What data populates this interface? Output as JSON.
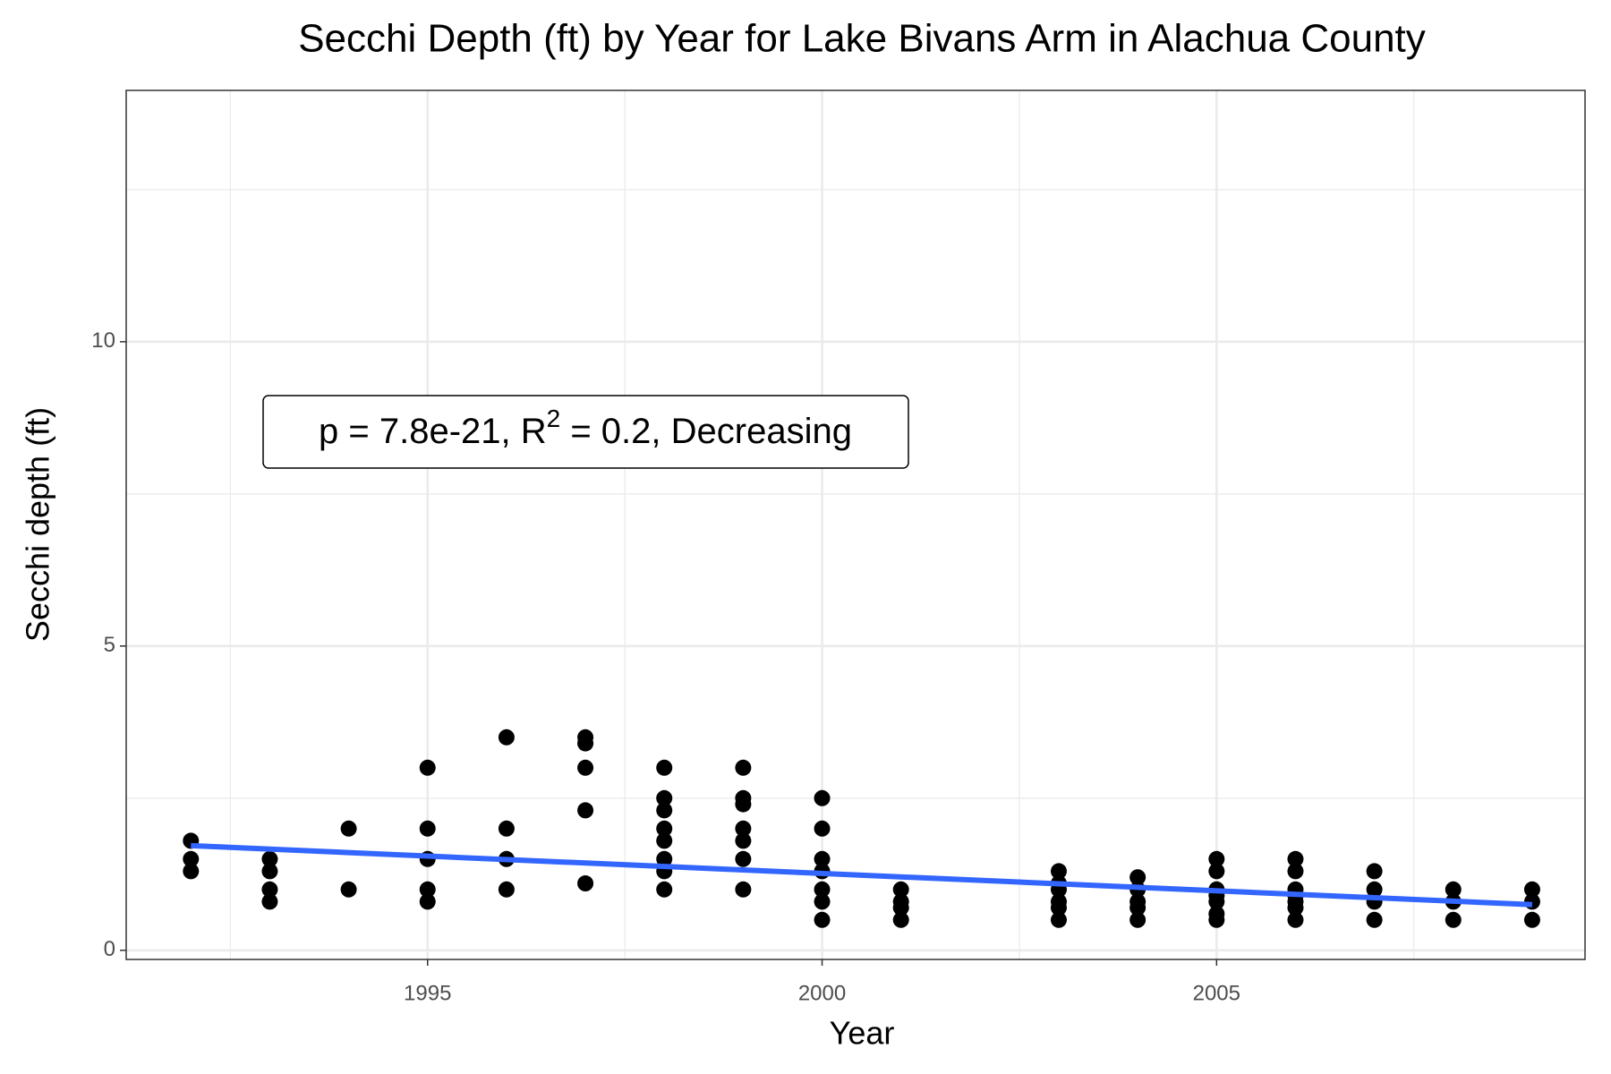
{
  "chart_data": {
    "type": "scatter",
    "title": "Secchi Depth (ft) by Year for Lake Bivans Arm in Alachua County",
    "x_label": "Year",
    "y_label": "Secchi depth (ft)",
    "annotation": [
      "p = 7.8e-21, R",
      "2",
      " = 0.2, Decreasing"
    ],
    "xlim": [
      1991.18,
      2009.67
    ],
    "ylim": [
      -0.15,
      14.13
    ],
    "xticks": [
      1995,
      2000,
      2005
    ],
    "yticks": [
      0,
      5,
      10
    ],
    "xminor": [
      1992.5,
      1997.5,
      2002.5,
      2007.5
    ],
    "yminor": [
      2.5,
      7.5,
      12.5
    ],
    "grid": true,
    "series": [
      {
        "color": "#000000",
        "x": [
          1992,
          1992,
          1992,
          1993,
          1993,
          1993,
          1993,
          1994,
          1994,
          1995,
          1995,
          1995,
          1995,
          1995,
          1996,
          1996,
          1996,
          1996,
          1997,
          1997,
          1997,
          1997,
          1997,
          1998,
          1998,
          1998,
          1998,
          1998,
          1998,
          1998,
          1998,
          1999,
          1999,
          1999,
          1999,
          1999,
          1999,
          1999,
          2000,
          2000,
          2000,
          2000,
          2000,
          2000,
          2000,
          2001,
          2001,
          2001,
          2001,
          2003,
          2003,
          2003,
          2003,
          2003,
          2003,
          2004,
          2004,
          2004,
          2004,
          2004,
          2005,
          2005,
          2005,
          2005,
          2005,
          2005,
          2005,
          2006,
          2006,
          2006,
          2006,
          2006,
          2006,
          2006,
          2007,
          2007,
          2007,
          2007,
          2008,
          2008,
          2008,
          2009,
          2009,
          2009
        ],
        "values": [
          1.8,
          1.5,
          1.3,
          1.5,
          1.3,
          1.0,
          0.8,
          2.0,
          1.0,
          3.0,
          2.0,
          1.5,
          1.0,
          0.8,
          3.5,
          2.0,
          1.5,
          1.0,
          3.5,
          3.4,
          3.0,
          2.3,
          1.1,
          3.0,
          2.5,
          2.3,
          2.0,
          1.8,
          1.5,
          1.3,
          1.0,
          3.0,
          2.5,
          2.4,
          2.0,
          1.8,
          1.5,
          1.0,
          2.5,
          2.0,
          1.5,
          1.3,
          1.0,
          0.8,
          0.5,
          1.0,
          0.8,
          0.7,
          0.5,
          1.3,
          1.1,
          1.0,
          0.8,
          0.7,
          0.5,
          1.2,
          1.0,
          0.8,
          0.7,
          0.5,
          1.5,
          1.3,
          1.0,
          0.9,
          0.8,
          0.6,
          0.5,
          1.5,
          1.3,
          1.0,
          0.9,
          0.8,
          0.7,
          0.5,
          1.3,
          1.0,
          0.8,
          0.5,
          1.0,
          0.8,
          0.5,
          1.0,
          0.8,
          0.5
        ]
      }
    ],
    "trend": {
      "color": "#3366ff",
      "x": [
        1992,
        2009
      ],
      "values": [
        1.72,
        0.75
      ]
    }
  }
}
